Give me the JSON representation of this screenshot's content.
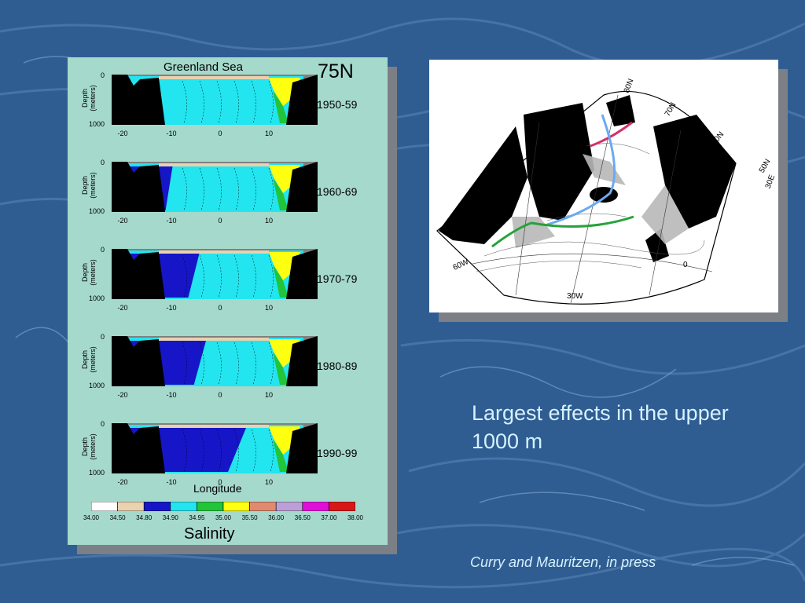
{
  "slide": {
    "message": "Largest effects in the upper 1000 m",
    "citation": "Curry and Mauritzen, in press",
    "colors": {
      "text": "#d6f1ff",
      "background": "#2f5d92",
      "panel": "#a5d9cb"
    }
  },
  "sections": {
    "title": "Greenland Sea",
    "latitude_label": "75N",
    "y_axis_label": "Depth (meters)",
    "y_ticks": [
      "0",
      "1000"
    ],
    "x_ticks": [
      "-20",
      "-10",
      "0",
      "10"
    ],
    "x_axis_label": "Longitude",
    "decades": [
      "1950-59",
      "1960-69",
      "1970-79",
      "1980-89",
      "1990-99"
    ]
  },
  "salinity_scale": {
    "label": "Salinity",
    "ticks": [
      "34.00",
      "34.50",
      "34.80",
      "34.90",
      "34.95",
      "35.00",
      "35.50",
      "36.00",
      "36.50",
      "37.00",
      "38.00"
    ],
    "colors": [
      "#ffffff",
      "#e8d2b0",
      "#1616c8",
      "#22e5ef",
      "#22c43a",
      "#ffff10",
      "#e08a70",
      "#bba0d8",
      "#e010d8",
      "#d81818"
    ]
  },
  "map": {
    "labels": [
      "80N",
      "70N",
      "60N",
      "50N",
      "30E",
      "0",
      "30W",
      "60W"
    ],
    "line_colors": {
      "north": "#d6306a",
      "meridional": "#6aaaf0",
      "south": "#26a23a"
    }
  }
}
